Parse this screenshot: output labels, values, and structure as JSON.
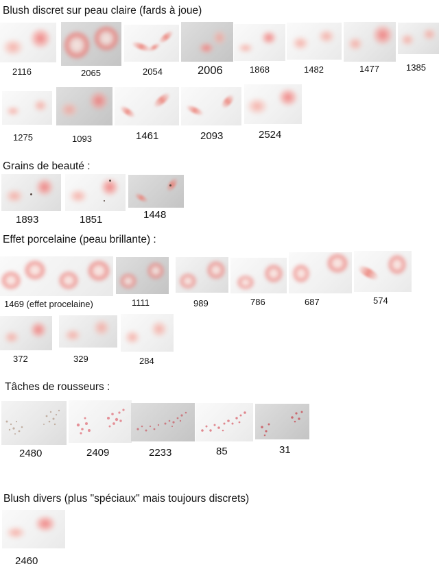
{
  "sections": {
    "blush_discret": {
      "heading": "Blush discret sur peau claire (fards à joue)",
      "items": [
        "2116",
        "2065",
        "2054",
        "2006",
        "1868",
        "1482",
        "1477",
        "1385",
        "1275",
        "1093",
        "1461",
        "2093",
        "2524"
      ]
    },
    "grains": {
      "heading": "Grains de beauté :",
      "items": [
        "1893",
        "1851",
        "1448"
      ]
    },
    "porcelaine": {
      "heading": "Effet porcelaine (peau brillante) :",
      "items": [
        "1469 (effet procelaine)",
        "1111",
        "989",
        "786",
        "687",
        "574",
        "372",
        "329",
        "284"
      ]
    },
    "rousseur": {
      "heading": "Tâches de rousseurs :",
      "items": [
        "2480",
        "2409",
        "2233",
        "85",
        "31"
      ]
    },
    "divers": {
      "heading": "Blush divers (plus \"spéciaux\" mais toujours discrets)",
      "items": [
        "2460"
      ]
    }
  },
  "colors": {
    "thumbnail_background": "#e8e8e8",
    "blush_pink": "#ee6e6e",
    "freckle_red": "#c8505a",
    "text": "#111111"
  }
}
